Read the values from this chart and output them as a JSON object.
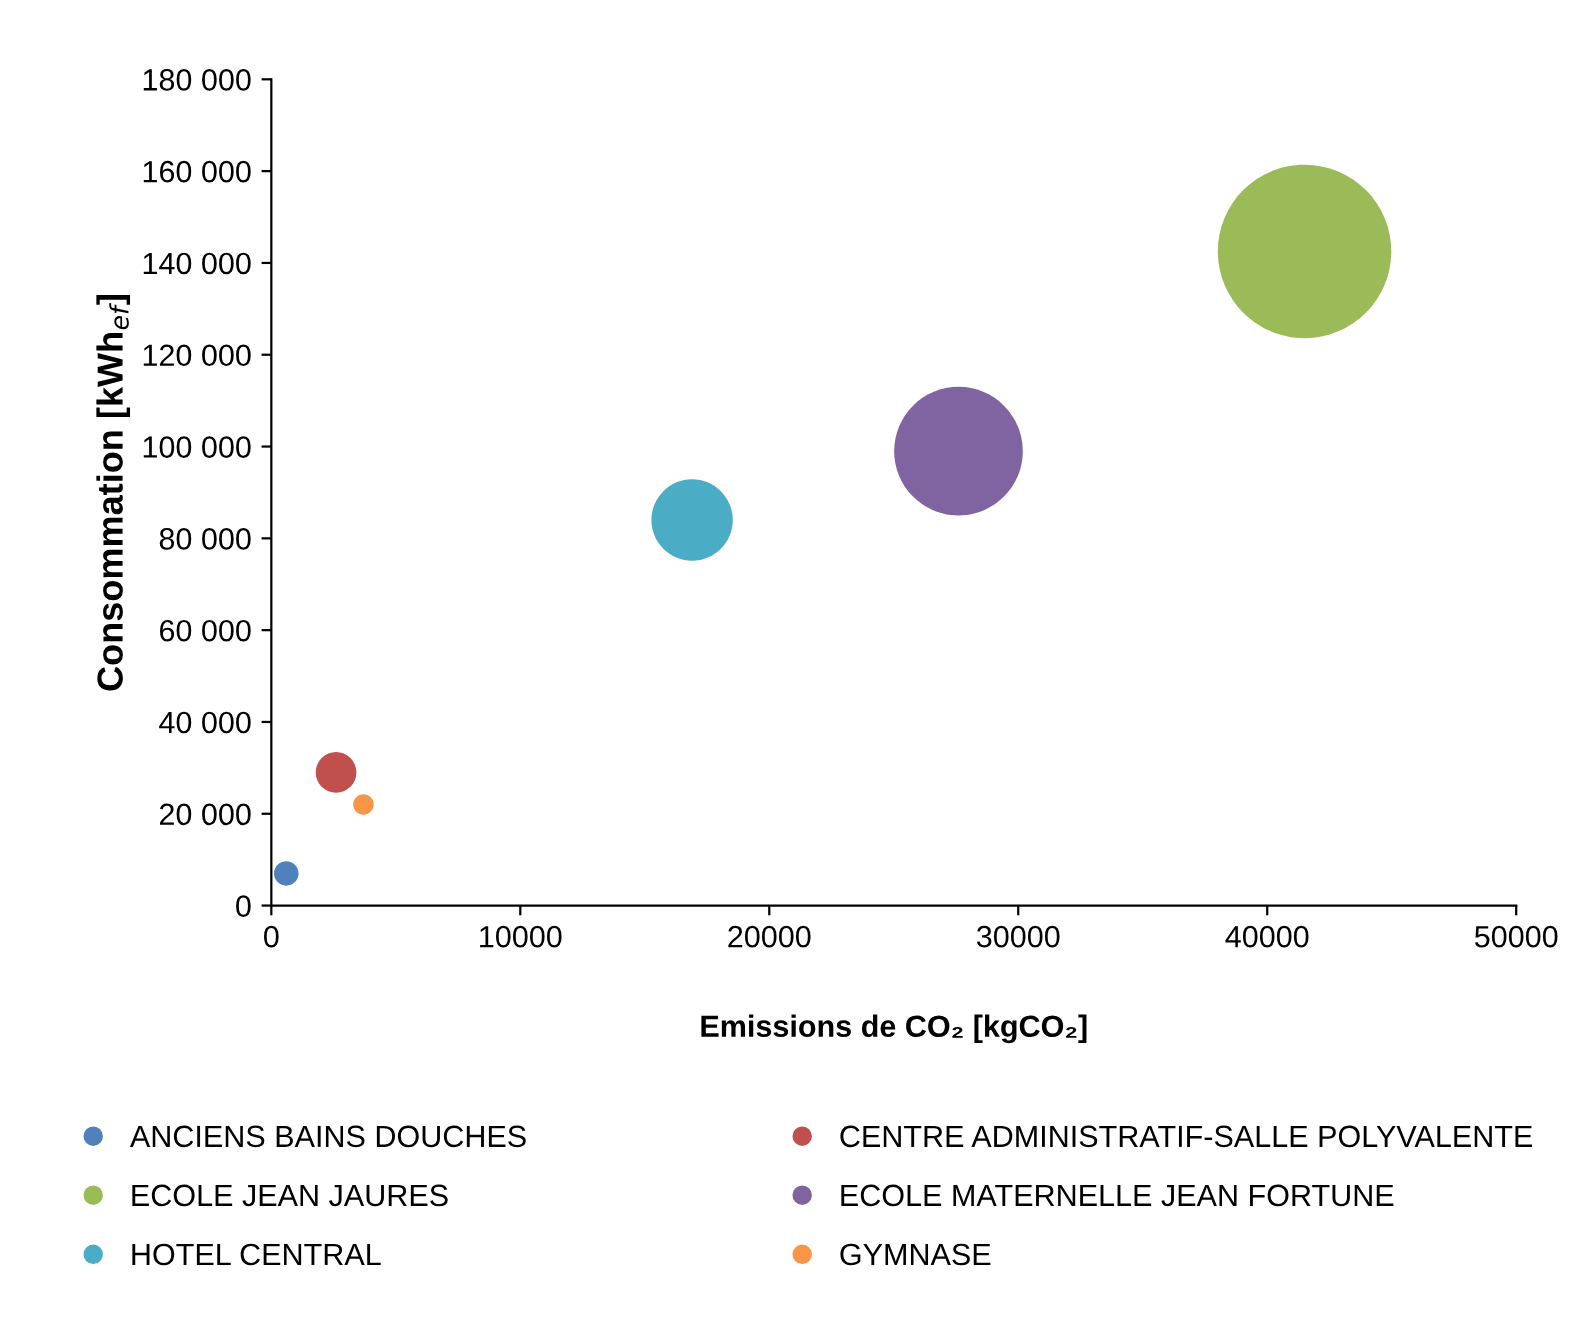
{
  "chart_data": {
    "type": "bubble",
    "xlabel": "Emissions de CO₂ [kgCO₂]",
    "ylabel": "Consommation [kWh$_{ef}$]",
    "xlim": [
      0,
      50000
    ],
    "xticks": [
      0,
      10000,
      20000,
      30000,
      40000,
      50000
    ],
    "ylim": [
      0,
      180000
    ],
    "yticks": [
      {
        "value": 0,
        "label": "0"
      },
      {
        "value": 20000,
        "label": "20 000"
      },
      {
        "value": 40000,
        "label": "40 000"
      },
      {
        "value": 60000,
        "label": "60 000"
      },
      {
        "value": 80000,
        "label": "80 000"
      },
      {
        "value": 100000,
        "label": "100 000"
      },
      {
        "value": 120000,
        "label": "120 000"
      },
      {
        "value": 140000,
        "label": "140 000"
      },
      {
        "value": 160000,
        "label": "160 000"
      },
      {
        "value": 180000,
        "label": "180 000"
      }
    ],
    "grid": false,
    "legend": "bottom",
    "marker": "circle",
    "series": [
      {
        "name": "ANCIENS BAINS DOUCHES",
        "color": "#4f81bd",
        "x": [
          600
        ],
        "values": [
          7000
        ],
        "sizes": [
          0.02
        ]
      },
      {
        "name": "CENTRE ADMINISTRATIF-SALLE POLYVALENTE",
        "color": "#c0504d",
        "x": [
          2600
        ],
        "values": [
          29000
        ],
        "sizes": [
          0.055
        ]
      },
      {
        "name": "ECOLE JEAN JAURES",
        "color": "#9bbb59",
        "x": [
          41500
        ],
        "values": [
          142500
        ],
        "sizes": [
          1
        ]
      },
      {
        "name": "ECOLE MATERNELLE JEAN FORTUNE",
        "color": "#8064a2",
        "x": [
          27600
        ],
        "values": [
          99000
        ],
        "sizes": [
          0.55
        ]
      },
      {
        "name": "HOTEL CENTRAL",
        "color": "#4bacc6",
        "x": [
          16900
        ],
        "values": [
          84000
        ],
        "sizes": [
          0.22
        ]
      },
      {
        "name": "GYMNASE",
        "color": "#f79646",
        "x": [
          3700
        ],
        "values": [
          22000
        ],
        "sizes": [
          0.014
        ]
      }
    ]
  }
}
